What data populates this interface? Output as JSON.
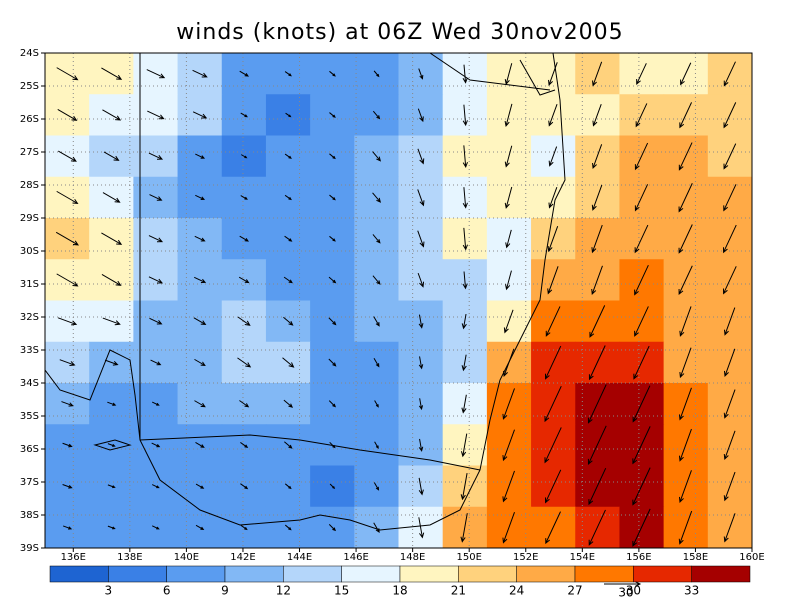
{
  "chart_data": {
    "type": "contour",
    "title": "winds (knots) at 06Z Wed 30nov2005",
    "xlim": [
      135,
      160
    ],
    "ylim": [
      -39,
      -24
    ],
    "xticks": [
      {
        "value": 136,
        "label": "136E"
      },
      {
        "value": 138,
        "label": "138E"
      },
      {
        "value": 140,
        "label": "140E"
      },
      {
        "value": 142,
        "label": "142E"
      },
      {
        "value": 144,
        "label": "144E"
      },
      {
        "value": 146,
        "label": "146E"
      },
      {
        "value": 148,
        "label": "148E"
      },
      {
        "value": 150,
        "label": "150E"
      },
      {
        "value": 152,
        "label": "152E"
      },
      {
        "value": 154,
        "label": "154E"
      },
      {
        "value": 156,
        "label": "156E"
      },
      {
        "value": 158,
        "label": "158E"
      },
      {
        "value": 160,
        "label": "160E"
      }
    ],
    "yticks": [
      {
        "value": -24,
        "label": "24S"
      },
      {
        "value": -25,
        "label": "25S"
      },
      {
        "value": -26,
        "label": "26S"
      },
      {
        "value": -27,
        "label": "27S"
      },
      {
        "value": -28,
        "label": "28S"
      },
      {
        "value": -29,
        "label": "29S"
      },
      {
        "value": -30,
        "label": "30S"
      },
      {
        "value": -31,
        "label": "31S"
      },
      {
        "value": -32,
        "label": "32S"
      },
      {
        "value": -33,
        "label": "33S"
      },
      {
        "value": -34,
        "label": "34S"
      },
      {
        "value": -35,
        "label": "35S"
      },
      {
        "value": -36,
        "label": "36S"
      },
      {
        "value": -37,
        "label": "37S"
      },
      {
        "value": -38,
        "label": "38S"
      },
      {
        "value": -39,
        "label": "39S"
      }
    ],
    "grid": true,
    "levels": [
      3,
      6,
      9,
      12,
      15,
      18,
      21,
      24,
      27,
      30,
      33
    ],
    "colors": [
      "#1e64d2",
      "#3a80e6",
      "#5a9cf0",
      "#82b8f5",
      "#b4d6fa",
      "#e6f5ff",
      "#fff5c0",
      "#ffd27d",
      "#ffaa46",
      "#ff7800",
      "#e62800",
      "#a50000"
    ],
    "vector_reference": 30,
    "speed": [
      [
        20,
        19,
        16,
        13,
        8,
        6,
        6,
        6,
        9,
        15,
        18,
        20,
        21,
        19,
        20,
        22
      ],
      [
        18,
        17,
        15,
        12,
        6,
        5,
        6,
        8,
        11,
        17,
        19,
        19,
        19,
        21,
        23,
        23
      ],
      [
        17,
        14,
        12,
        8,
        5,
        6,
        6,
        10,
        13,
        18,
        18,
        17,
        21,
        24,
        25,
        23
      ],
      [
        20,
        16,
        11,
        8,
        6,
        6,
        6,
        10,
        14,
        17,
        18,
        18,
        22,
        24,
        26,
        24
      ],
      [
        21,
        19,
        12,
        9,
        8,
        7,
        6,
        9,
        14,
        18,
        15,
        22,
        24,
        25,
        26,
        25
      ],
      [
        20,
        18,
        12,
        10,
        9,
        8,
        7,
        9,
        12,
        14,
        16,
        24,
        25,
        27,
        26,
        25
      ],
      [
        16,
        15,
        11,
        11,
        12,
        10,
        8,
        9,
        11,
        12,
        20,
        27,
        29,
        27,
        26,
        24
      ],
      [
        13,
        11,
        9,
        10,
        13,
        12,
        8,
        8,
        10,
        13,
        24,
        30,
        31,
        30,
        26,
        24
      ],
      [
        10,
        7,
        6,
        10,
        9,
        9,
        7,
        6,
        9,
        15,
        27,
        32,
        35,
        33,
        28,
        25
      ],
      [
        8,
        6,
        7,
        8,
        7,
        8,
        6,
        6,
        10,
        19,
        27,
        32,
        35,
        34,
        28,
        25
      ],
      [
        8,
        6,
        6,
        7,
        7,
        6,
        5,
        7,
        14,
        22,
        27,
        30,
        33,
        34,
        28,
        25
      ],
      [
        7,
        6,
        6,
        7,
        6,
        6,
        7,
        9,
        17,
        24,
        27,
        29,
        32,
        34,
        29,
        25
      ]
    ],
    "direction": [
      [
        120,
        120,
        115,
        115,
        120,
        125,
        130,
        140,
        160,
        175,
        195,
        200,
        200,
        205,
        205,
        205
      ],
      [
        120,
        120,
        115,
        115,
        120,
        125,
        130,
        140,
        160,
        175,
        195,
        200,
        200,
        205,
        205,
        205
      ],
      [
        120,
        120,
        115,
        115,
        120,
        125,
        130,
        140,
        160,
        175,
        195,
        200,
        200,
        205,
        205,
        205
      ],
      [
        120,
        120,
        115,
        115,
        120,
        125,
        130,
        140,
        160,
        175,
        195,
        200,
        200,
        205,
        205,
        205
      ],
      [
        120,
        120,
        115,
        115,
        120,
        125,
        130,
        140,
        160,
        175,
        195,
        200,
        200,
        205,
        205,
        205
      ],
      [
        120,
        120,
        115,
        115,
        120,
        125,
        130,
        140,
        160,
        175,
        195,
        200,
        200,
        205,
        205,
        205
      ],
      [
        110,
        110,
        115,
        120,
        125,
        130,
        135,
        150,
        170,
        190,
        200,
        205,
        205,
        205,
        200,
        200
      ],
      [
        110,
        110,
        115,
        120,
        125,
        130,
        135,
        150,
        170,
        190,
        200,
        205,
        205,
        205,
        200,
        200
      ],
      [
        110,
        110,
        115,
        120,
        125,
        130,
        135,
        150,
        170,
        190,
        200,
        205,
        205,
        205,
        200,
        200
      ],
      [
        110,
        110,
        115,
        120,
        125,
        130,
        135,
        150,
        170,
        190,
        200,
        205,
        205,
        205,
        200,
        200
      ],
      [
        110,
        110,
        115,
        120,
        125,
        130,
        135,
        150,
        170,
        190,
        200,
        205,
        205,
        205,
        200,
        200
      ],
      [
        110,
        110,
        115,
        120,
        125,
        130,
        135,
        150,
        170,
        190,
        200,
        205,
        205,
        205,
        200,
        200
      ]
    ]
  }
}
